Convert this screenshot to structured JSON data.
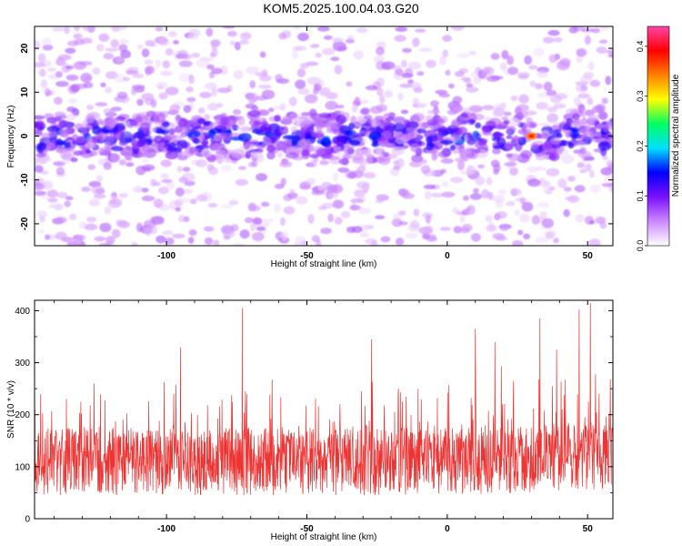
{
  "title": "KOM5.2025.100.04.03.G20",
  "chart_data": [
    {
      "type": "heatmap",
      "xlabel": "Height of straight line (km)",
      "ylabel": "Frequency (Hz)",
      "xlim": [
        -147,
        59
      ],
      "ylim": [
        -25,
        25
      ],
      "xticks": [
        -100,
        -50,
        0,
        50
      ],
      "yticks": [
        -20,
        -10,
        0,
        10,
        20
      ],
      "xticklabels": [
        "-100",
        "-50",
        "0",
        "50"
      ],
      "yticklabels": [
        "-20",
        "-10",
        "0",
        "10",
        "20"
      ],
      "band_center_hz": 0,
      "band_halfwidth_hz": 5,
      "peak": {
        "x": 30,
        "y": 0,
        "value": 0.44
      },
      "colorbar": {
        "label": "Normalized spectral amplitude",
        "range": [
          0.0,
          0.44
        ],
        "ticks": [
          0.0,
          0.1,
          0.2,
          0.3,
          0.4
        ],
        "ticklabels": [
          "0.0",
          "0.1",
          "0.2",
          "0.3",
          "0.4"
        ],
        "colors": [
          "#ffffff",
          "#cc88ff",
          "#7a10ff",
          "#0000ff",
          "#00e0ff",
          "#00ff60",
          "#ffff00",
          "#ff8000",
          "#ff0000",
          "#ff44a8"
        ]
      }
    },
    {
      "type": "line",
      "xlabel": "Height of straight line (km)",
      "ylabel": "SNR (10 * v/v)",
      "xlim": [
        -147,
        59
      ],
      "ylim": [
        0,
        420
      ],
      "xticks": [
        -100,
        -50,
        0,
        50
      ],
      "yticks": [
        0,
        100,
        200,
        300,
        400
      ],
      "xticklabels": [
        "-100",
        "-50",
        "0",
        "50"
      ],
      "yticklabels": [
        "0",
        "100",
        "200",
        "300",
        "400"
      ],
      "color": "#ee3333",
      "n_points": 1800,
      "baseline": 110,
      "spikes": [
        {
          "x": -73,
          "y": 405
        },
        {
          "x": 47,
          "y": 402
        },
        {
          "x": 51,
          "y": 415
        },
        {
          "x": -95,
          "y": 330
        },
        {
          "x": -27,
          "y": 345
        },
        {
          "x": 10,
          "y": 365
        },
        {
          "x": 33,
          "y": 385
        },
        {
          "x": 17,
          "y": 340
        },
        {
          "x": 39,
          "y": 325
        }
      ]
    }
  ]
}
